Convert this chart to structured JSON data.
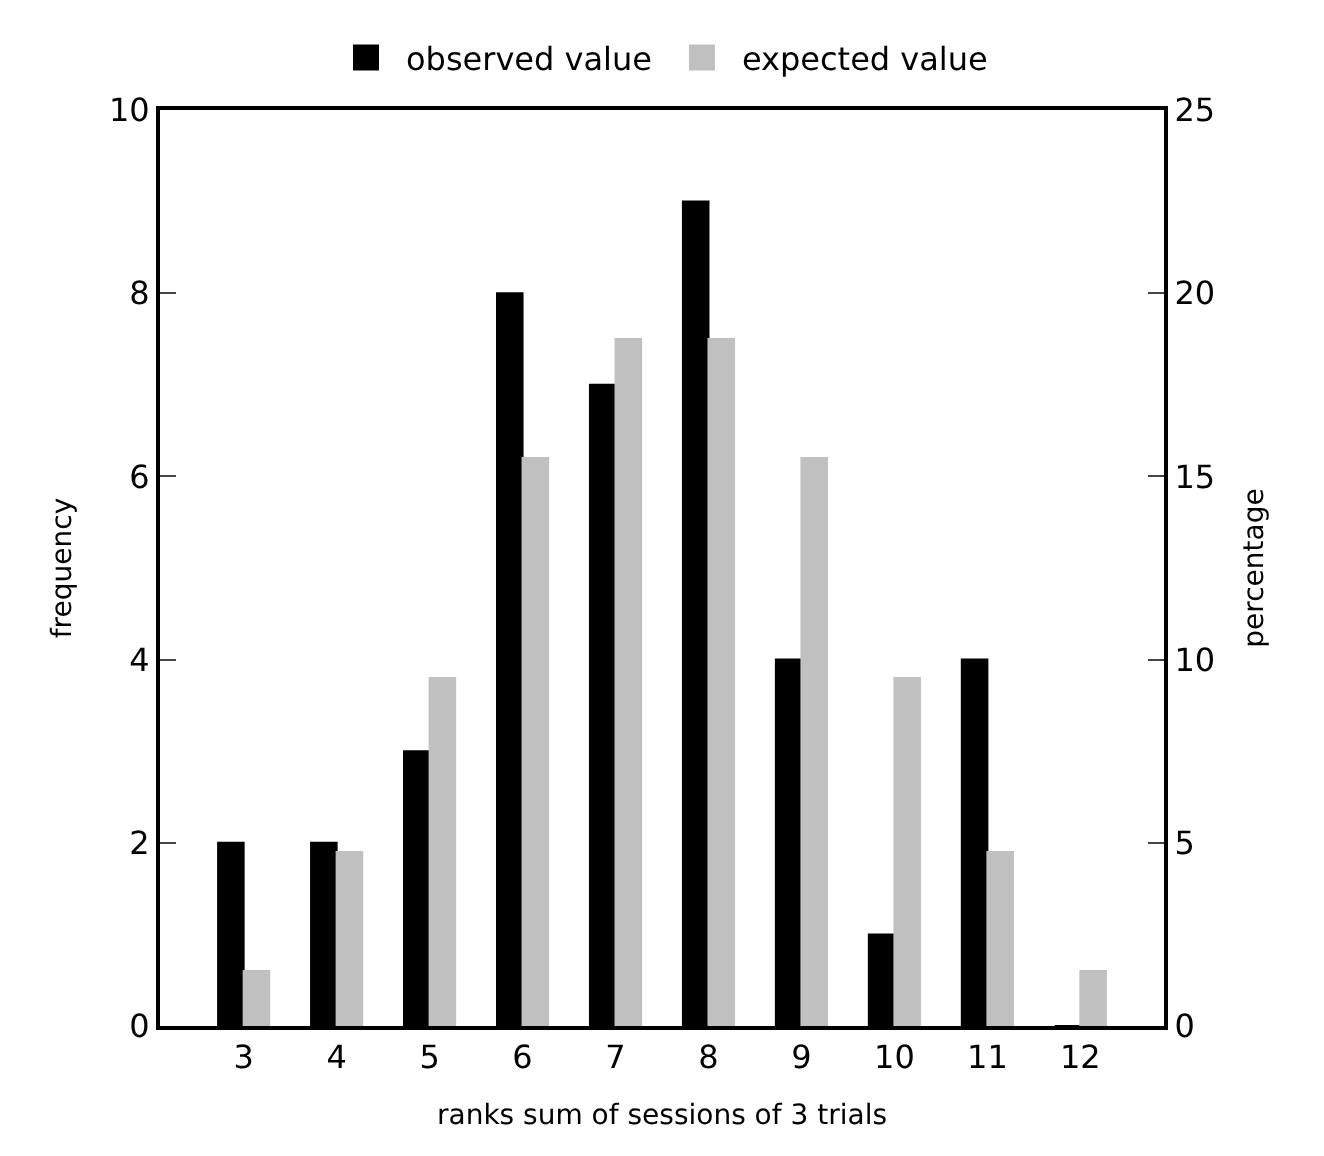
{
  "chart_data": {
    "type": "bar",
    "xlabel": "ranks sum of sessions of 3 trials",
    "ylabel": "frequency",
    "y2label": "percentage",
    "categories": [
      "3",
      "4",
      "5",
      "6",
      "7",
      "8",
      "9",
      "10",
      "11",
      "12"
    ],
    "series": [
      {
        "name": "observed value",
        "color": "#000000",
        "values": [
          2,
          2,
          3,
          8,
          7,
          9,
          4,
          1,
          4,
          0
        ]
      },
      {
        "name": "expected value",
        "color": "#c0c0c0",
        "values": [
          0.6,
          1.9,
          3.8,
          6.2,
          7.5,
          7.5,
          6.2,
          3.8,
          1.9,
          0.6
        ]
      }
    ],
    "ylim": [
      0,
      10
    ],
    "yticks": [
      0,
      2,
      4,
      6,
      8,
      10
    ],
    "y2lim": [
      0,
      25
    ],
    "y2ticks": [
      0,
      5,
      10,
      15,
      20,
      25
    ],
    "legend": "top"
  }
}
